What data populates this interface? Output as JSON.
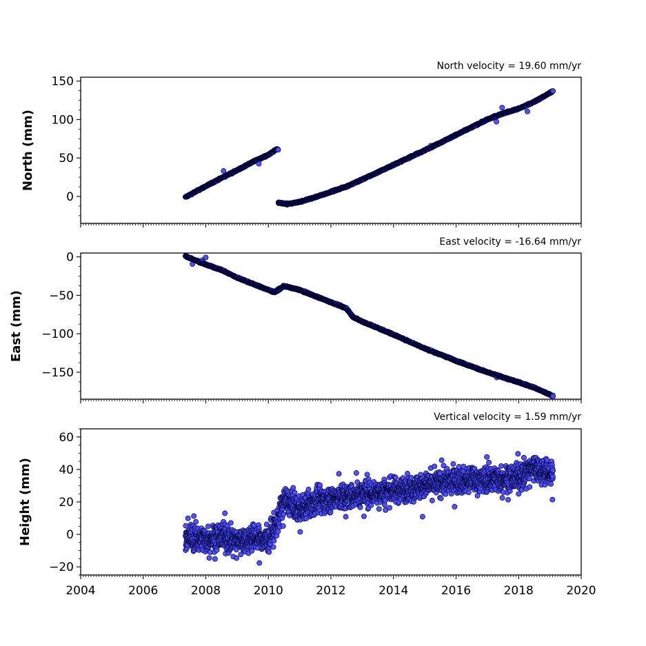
{
  "figure": {
    "background": "#ffffff",
    "marker_face": "#4b4bff",
    "marker_edge": "#000033"
  },
  "chart_data": [
    {
      "type": "scatter",
      "title": "North velocity = 19.60 mm/yr",
      "ylabel": "North (mm)",
      "xlabel": "",
      "xlim": [
        2004,
        2020
      ],
      "ylim": [
        -35,
        155
      ],
      "yticks": [
        0,
        50,
        100,
        150
      ],
      "ytick_labels": [
        "0",
        "50",
        "100",
        "150"
      ],
      "show_xtick_labels": false,
      "grid": false,
      "segments": [
        {
          "start": 2007.35,
          "end": 2010.3,
          "y_start": -1,
          "y_end": 61
        },
        {
          "start": 2010.3,
          "end": 2019.1,
          "y_start": -11,
          "y_end": 137
        }
      ],
      "x": [
        2007.35,
        2007.8,
        2008.5,
        2009.0,
        2009.5,
        2010.0,
        2010.25,
        2010.32,
        2010.6,
        2011.0,
        2011.5,
        2012.0,
        2012.5,
        2013.0,
        2014.0,
        2015.0,
        2016.0,
        2017.0,
        2017.5,
        2018.0,
        2018.5,
        2019.1
      ],
      "y": [
        -1,
        9,
        24,
        34,
        45,
        54,
        61,
        -8,
        -10,
        -7,
        -1,
        6,
        13,
        22,
        41,
        60,
        80,
        100,
        108,
        114,
        123,
        137
      ]
    },
    {
      "type": "scatter",
      "title": "East velocity = -16.64 mm/yr",
      "ylabel": "East (mm)",
      "xlabel": "",
      "xlim": [
        2004,
        2020
      ],
      "ylim": [
        -185,
        5
      ],
      "yticks": [
        0,
        -50,
        -100,
        -150
      ],
      "ytick_labels": [
        "0",
        "−50",
        "−100",
        "−150"
      ],
      "show_xtick_labels": false,
      "grid": false,
      "segments": [
        {
          "start": 2007.35,
          "end": 2010.2,
          "y_start": 1,
          "y_end": -46
        },
        {
          "start": 2010.2,
          "end": 2019.1,
          "y_start": -36,
          "y_end": -181
        }
      ],
      "x": [
        2007.35,
        2008.0,
        2008.5,
        2009.0,
        2009.5,
        2010.0,
        2010.2,
        2010.5,
        2011.0,
        2011.5,
        2012.0,
        2012.5,
        2012.7,
        2013.0,
        2014.0,
        2015.0,
        2016.0,
        2017.0,
        2018.0,
        2018.5,
        2019.1
      ],
      "y": [
        1,
        -10,
        -17,
        -27,
        -35,
        -43,
        -46,
        -38,
        -43,
        -51,
        -59,
        -67,
        -78,
        -84,
        -101,
        -119,
        -135,
        -150,
        -163,
        -170,
        -181
      ]
    },
    {
      "type": "scatter",
      "title": "Vertical velocity = 1.59 mm/yr",
      "ylabel": "Height (mm)",
      "xlabel": "",
      "xlim": [
        2004,
        2020
      ],
      "ylim": [
        -25,
        65
      ],
      "yticks": [
        -20,
        0,
        20,
        40,
        60
      ],
      "ytick_labels": [
        "−20",
        "0",
        "20",
        "40",
        "60"
      ],
      "xticks": [
        2004,
        2006,
        2008,
        2010,
        2012,
        2014,
        2016,
        2018,
        2020
      ],
      "xtick_labels": [
        "2004",
        "2006",
        "2008",
        "2010",
        "2012",
        "2014",
        "2016",
        "2018",
        "2020"
      ],
      "show_xtick_labels": true,
      "grid": false,
      "segments": [
        {
          "start": 2007.35,
          "end": 2010.3,
          "y_start": -2,
          "y_end": -3
        },
        {
          "start": 2010.3,
          "end": 2019.1,
          "y_start": 18,
          "y_end": 40
        }
      ],
      "x": [
        2007.35,
        2008.0,
        2008.5,
        2009.0,
        2009.5,
        2010.0,
        2010.3,
        2010.5,
        2011.0,
        2011.5,
        2012.0,
        2012.5,
        2013.0,
        2014.0,
        2015.0,
        2016.0,
        2017.0,
        2018.0,
        2018.5,
        2019.1
      ],
      "y": [
        -2,
        -3,
        -1,
        -4,
        -2,
        -4,
        8,
        22,
        15,
        20,
        22,
        23,
        25,
        27,
        30,
        33,
        34,
        35,
        42,
        36
      ]
    }
  ]
}
